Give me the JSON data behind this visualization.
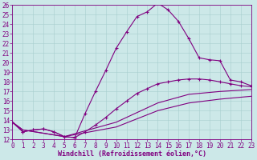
{
  "xlabel": "Windchill (Refroidissement éolien,°C)",
  "background_color": "#cce8e8",
  "line_color": "#800080",
  "grid_color": "#a8cece",
  "xlim": [
    0,
    23
  ],
  "ylim": [
    12,
    26
  ],
  "xticks": [
    0,
    1,
    2,
    3,
    4,
    5,
    6,
    7,
    8,
    9,
    10,
    11,
    12,
    13,
    14,
    15,
    16,
    17,
    18,
    19,
    20,
    21,
    22,
    23
  ],
  "yticks": [
    12,
    13,
    14,
    15,
    16,
    17,
    18,
    19,
    20,
    21,
    22,
    23,
    24,
    25,
    26
  ],
  "curve1_x": [
    0,
    1,
    2,
    3,
    4,
    5,
    6,
    7,
    8,
    9,
    10,
    11,
    12,
    13,
    14,
    15,
    16,
    17,
    18,
    19,
    20,
    21,
    22,
    23
  ],
  "curve1_y": [
    13.8,
    12.8,
    13.0,
    13.1,
    12.8,
    12.3,
    12.2,
    14.7,
    17.0,
    19.2,
    21.5,
    23.2,
    24.8,
    25.3,
    26.2,
    25.5,
    24.3,
    22.5,
    20.5,
    20.3,
    20.2,
    18.2,
    18.0,
    17.6
  ],
  "curve2_x": [
    0,
    1,
    2,
    3,
    4,
    5,
    6,
    7,
    8,
    9,
    10,
    11,
    12,
    13,
    14,
    15,
    16,
    17,
    18,
    19,
    20,
    21,
    22,
    23
  ],
  "curve2_y": [
    13.8,
    12.8,
    13.0,
    13.1,
    12.8,
    12.3,
    12.2,
    12.8,
    13.5,
    14.3,
    15.2,
    16.0,
    16.8,
    17.3,
    17.8,
    18.0,
    18.2,
    18.3,
    18.3,
    18.2,
    18.0,
    17.8,
    17.6,
    17.5
  ],
  "curve3_x": [
    0,
    1,
    5,
    10,
    14,
    17,
    20,
    23
  ],
  "curve3_y": [
    13.8,
    13.0,
    12.3,
    13.8,
    15.8,
    16.7,
    17.0,
    17.2
  ],
  "curve4_x": [
    0,
    1,
    5,
    10,
    14,
    17,
    20,
    23
  ],
  "curve4_y": [
    13.8,
    13.0,
    12.3,
    13.3,
    15.0,
    15.8,
    16.2,
    16.5
  ],
  "tick_fontsize": 5.5,
  "label_fontsize": 6.0
}
